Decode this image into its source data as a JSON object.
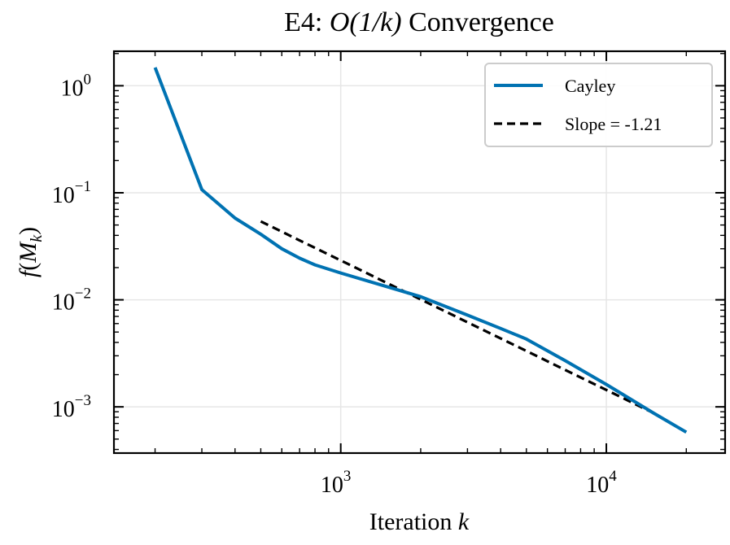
{
  "chart_data": {
    "type": "line",
    "title_prefix": "E4: ",
    "title_math": "O(1/k)",
    "title_suffix": " Convergence",
    "xlabel_text": "Iteration ",
    "xlabel_var": "k",
    "ylabel": "f(M_k)",
    "xscale": "log",
    "yscale": "log",
    "xlim": [
      140,
      28000
    ],
    "ylim": [
      0.00037,
      2.1
    ],
    "grid": true,
    "legend_position": "top-right",
    "x_major_ticks": [
      {
        "value": 1000,
        "base": "10",
        "exp": "3"
      },
      {
        "value": 10000,
        "base": "10",
        "exp": "4"
      }
    ],
    "y_major_ticks": [
      {
        "value": 1,
        "base": "10",
        "exp": "0"
      },
      {
        "value": 0.1,
        "base": "10",
        "exp": "−1"
      },
      {
        "value": 0.01,
        "base": "10",
        "exp": "−2"
      },
      {
        "value": 0.001,
        "base": "10",
        "exp": "−3"
      }
    ],
    "series": [
      {
        "name": "Cayley",
        "color": "#0072b2",
        "style": "solid",
        "x": [
          200,
          300,
          400,
          500,
          600,
          700,
          800,
          1000,
          2000,
          3000,
          4000,
          5000,
          7000,
          10000,
          15000,
          20000
        ],
        "y": [
          1.48,
          0.107,
          0.058,
          0.041,
          0.03,
          0.0245,
          0.0212,
          0.0178,
          0.0107,
          0.0072,
          0.0054,
          0.0043,
          0.0027,
          0.00162,
          0.00088,
          0.00058
        ]
      },
      {
        "name": "Slope = -1.21",
        "color": "#000000",
        "style": "dashed",
        "x": [
          500,
          15000
        ],
        "y": [
          0.054,
          0.00088
        ]
      }
    ]
  }
}
